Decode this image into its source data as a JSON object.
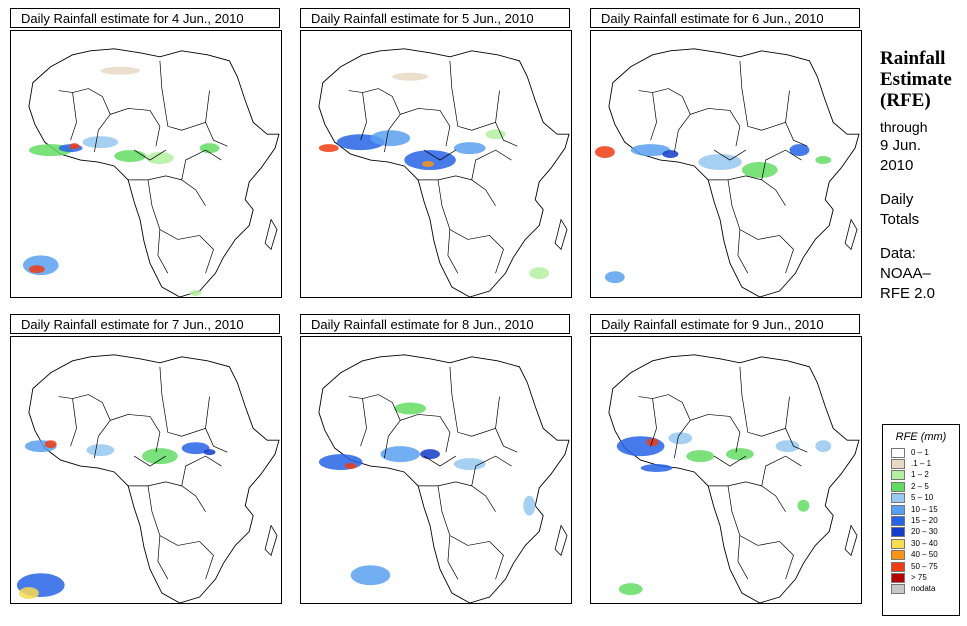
{
  "panels": [
    {
      "title": "Daily Rainfall estimate for  4 Jun., 2010"
    },
    {
      "title": "Daily Rainfall estimate for  5 Jun., 2010"
    },
    {
      "title": "Daily Rainfall estimate for  6 Jun., 2010"
    },
    {
      "title": "Daily Rainfall estimate for  7 Jun., 2010"
    },
    {
      "title": "Daily Rainfall estimate for  8 Jun., 2010"
    },
    {
      "title": "Daily Rainfall estimate for  9 Jun., 2010"
    }
  ],
  "sidebar": {
    "heading_1": "Rainfall",
    "heading_2": "Estimate",
    "heading_3": "(RFE)",
    "through": "through",
    "date_1": "9 Jun.",
    "date_2": "2010",
    "totals_1": "Daily",
    "totals_2": "Totals",
    "data_label": "Data:",
    "data_source_1": "NOAA–",
    "data_source_2": "RFE 2.0"
  },
  "legend": {
    "title": "RFE (mm)",
    "items": [
      {
        "label": "0 – 1",
        "color": "#ffffff"
      },
      {
        "label": ".1 – 1",
        "color": "#e8d8c4"
      },
      {
        "label": "1 – 2",
        "color": "#b4f0a0"
      },
      {
        "label": "2 – 5",
        "color": "#64dc64"
      },
      {
        "label": "5 – 10",
        "color": "#96c8f0"
      },
      {
        "label": "10 – 15",
        "color": "#5aa0f0"
      },
      {
        "label": "15 – 20",
        "color": "#2864e6"
      },
      {
        "label": "20 – 30",
        "color": "#143cc8"
      },
      {
        "label": "30 – 40",
        "color": "#fadc50"
      },
      {
        "label": "40 – 50",
        "color": "#fa9614"
      },
      {
        "label": "50 – 75",
        "color": "#f03c14"
      },
      {
        "label": "> 75",
        "color": "#b40000"
      },
      {
        "label": "nodata",
        "color": "#c8c8c8"
      }
    ]
  },
  "colors": {
    "border": "#000000",
    "ocean": "#ffffff"
  }
}
